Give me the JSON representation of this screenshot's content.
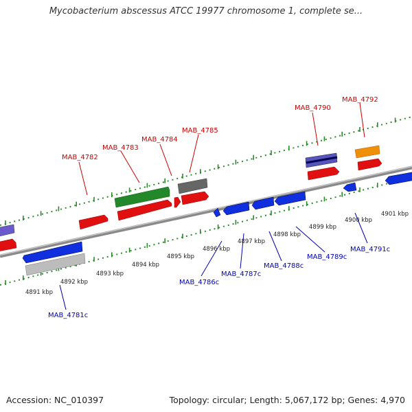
{
  "title": "Mycobacterium abscessus ATCC 19977 chromosome 1, complete se...",
  "footer": {
    "accession": "Accession: NC_010397",
    "topology": "Topology: circular; Length: 5,067,172 bp; Genes: 4,970"
  },
  "colors": {
    "forward_label": "#cc0000",
    "reverse_label": "#0000bb",
    "ruler_dots": "#22882a",
    "backbone": "#8a8a8a"
  },
  "kbp_labels": [
    "4891 kbp",
    "4892 kbp",
    "4893 kbp",
    "4894 kbp",
    "4895 kbp",
    "4896 kbp",
    "4897 kbp",
    "4898 kbp",
    "4899 kbp",
    "4900 kbp",
    "4901 kbp"
  ],
  "forward_genes": [
    "MAB_4782",
    "MAB_4783",
    "MAB_4784",
    "MAB_4785",
    "MAB_4790",
    "MAB_4792"
  ],
  "reverse_genes": [
    "MAB_4781c",
    "MAB_4786c",
    "MAB_4787c",
    "MAB_4788c",
    "MAB_4789c",
    "MAB_4791c"
  ]
}
